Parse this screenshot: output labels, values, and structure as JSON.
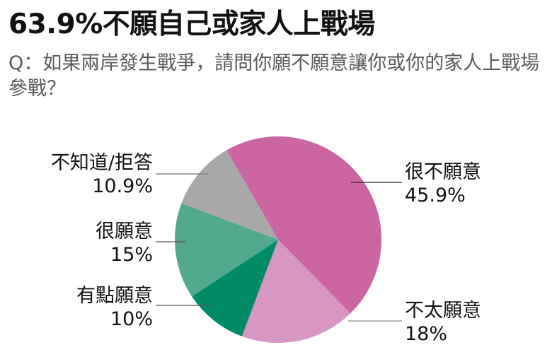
{
  "title": "63.9%不願自己或家人上戰場",
  "subtitle": "Q：如果兩岸發生戰爭，請問你願不願意讓你或你的家人上戰場參戰？",
  "chart_data": {
    "type": "pie",
    "title": "63.9%不願自己或家人上戰場",
    "subtitle": "Q：如果兩岸發生戰爭，請問你願不願意讓你或你的家人上戰場參戰？",
    "start_angle_deg": -30,
    "direction": "clockwise",
    "slices": [
      {
        "label": "很不願意",
        "value": 45.9,
        "display": "45.9%",
        "color": "#CC66A3"
      },
      {
        "label": "不太願意",
        "value": 18,
        "display": "18%",
        "color": "#D897C3"
      },
      {
        "label": "有點願意",
        "value": 10,
        "display": "10%",
        "color": "#008A66"
      },
      {
        "label": "很願意",
        "value": 15,
        "display": "15%",
        "color": "#52A98E"
      },
      {
        "label": "不知道/拒答",
        "value": 10.9,
        "display": "10.9%",
        "color": "#A8A8A8"
      }
    ]
  }
}
